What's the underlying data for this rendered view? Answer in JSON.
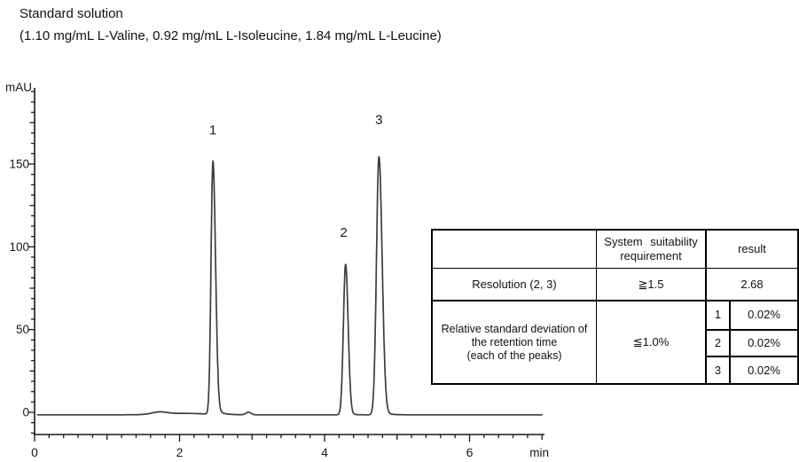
{
  "chart_data": {
    "type": "line",
    "title": "Standard solution",
    "subtitle": "(1.10 mg/mL L-Valine, 0.92 mg/mL L-Isoleucine, 1.84 mg/mL L-Leucine)",
    "x_axis": {
      "label": "min",
      "range": [
        0,
        7.0
      ],
      "major_ticks": [
        0,
        2,
        4,
        6
      ],
      "minor_step_min": 0.2
    },
    "y_axis": {
      "label": "mAU",
      "range": [
        -13,
        196
      ],
      "major_ticks": [
        0,
        50,
        100,
        150
      ],
      "minor_step_mau": 6.25
    },
    "baseline_mau": -1.5,
    "peaks": [
      {
        "label": "1",
        "retention_min": 2.46,
        "height_mau": 153,
        "sigma_lead": 0.026,
        "sigma_tail": 0.036,
        "tail_frac": 0.03,
        "tail_tau": 0.08
      },
      {
        "label": "2",
        "retention_min": 4.29,
        "height_mau": 91,
        "sigma_lead": 0.03,
        "sigma_tail": 0.035,
        "tail_frac": 0.03,
        "tail_tau": 0.05
      },
      {
        "label": "3",
        "retention_min": 4.75,
        "height_mau": 156,
        "sigma_lead": 0.034,
        "sigma_tail": 0.044,
        "tail_frac": 0.03,
        "tail_tau": 0.07
      }
    ],
    "baseline_features": [
      {
        "t": 1.72,
        "h": 1.3,
        "s": 0.1
      },
      {
        "t": 2.05,
        "h": 0.9,
        "s": 0.3
      },
      {
        "t": 2.95,
        "h": 1.6,
        "s": 0.035
      }
    ]
  },
  "table": {
    "header": {
      "blank": "",
      "requirement_line1": "System suitability",
      "requirement_line2": "requirement",
      "result": "result"
    },
    "resolution_row": {
      "name": "Resolution (2, 3)",
      "requirement": "≧1.5",
      "result": "2.68"
    },
    "rsd_row": {
      "name_line1": "Relative standard deviation of",
      "name_line2": "the retention time",
      "name_line3": "(each of the peaks)",
      "requirement": "≦1.0%",
      "entries": [
        {
          "peak": "1",
          "value": "0.02%"
        },
        {
          "peak": "2",
          "value": "0.02%"
        },
        {
          "peak": "3",
          "value": "0.02%"
        }
      ]
    }
  },
  "colors": {
    "ink": "#1a1a1a",
    "trace": "#3c3c3c",
    "background": "#ffffff"
  }
}
